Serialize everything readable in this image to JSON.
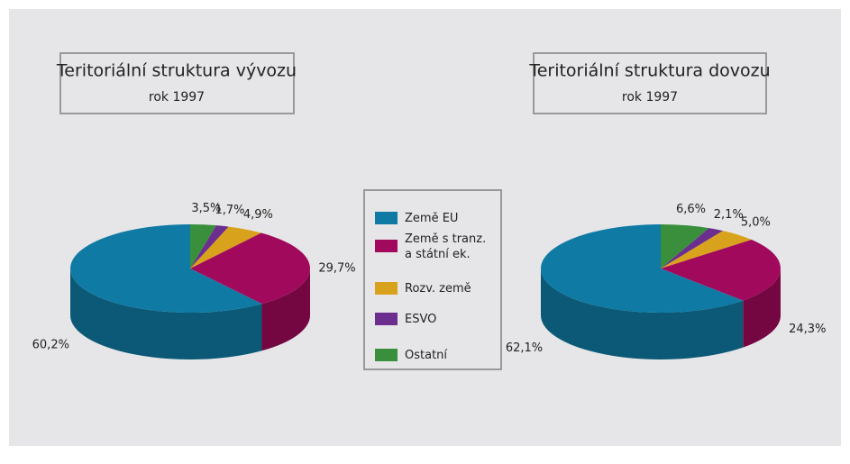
{
  "legend": {
    "categories": [
      "Země EU",
      "Země s tranz.\na státní ek.",
      "Rozv. země",
      "ESVO",
      "Ostatní"
    ],
    "colors": [
      "#0f7ba4",
      "#a10a5c",
      "#d9a21c",
      "#6b2e8f",
      "#3a8f3c"
    ]
  },
  "chart_data": [
    {
      "type": "pie3d",
      "title": "Teritoriální struktura vývozu",
      "subtitle": "rok 1997",
      "values": [
        60.2,
        29.7,
        4.9,
        1.7,
        3.5
      ],
      "value_labels": [
        "60,2%",
        "29,7%",
        "4,9%",
        "1,7%",
        "3,5%"
      ]
    },
    {
      "type": "pie3d",
      "title": "Teritoriální struktura dovozu",
      "subtitle": "rok 1997",
      "values": [
        62.1,
        24.3,
        5.0,
        2.1,
        6.6
      ],
      "value_labels": [
        "62,1%",
        "24,3%",
        "5,0%",
        "2,1%",
        "6,6%"
      ]
    }
  ]
}
